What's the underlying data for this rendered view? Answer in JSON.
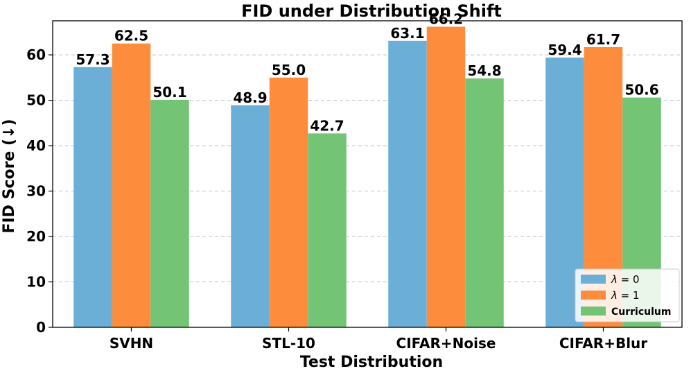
{
  "chart_data": {
    "type": "bar",
    "title": "FID under Distribution Shift",
    "xlabel": "Test Distribution",
    "ylabel": "FID Score (↓)",
    "ylim": [
      0,
      67.5
    ],
    "yticks": [
      0,
      10,
      20,
      30,
      40,
      50,
      60
    ],
    "grid": true,
    "legend_position": "bottom-right",
    "categories": [
      "SVHN",
      "STL-10",
      "CIFAR+Noise",
      "CIFAR+Blur"
    ],
    "series": [
      {
        "name": "λ = 0",
        "legend_var": "λ",
        "legend_rest": " = 0",
        "color": "#6baed6",
        "values": [
          57.3,
          48.9,
          63.1,
          59.4
        ],
        "labels": [
          "57.3",
          "48.9",
          "63.1",
          "59.4"
        ]
      },
      {
        "name": "λ = 1",
        "legend_var": "λ",
        "legend_rest": " = 1",
        "color": "#fd8d3c",
        "values": [
          62.5,
          55.0,
          66.2,
          61.7
        ],
        "labels": [
          "62.5",
          "55.0",
          "66.2",
          "61.7"
        ]
      },
      {
        "name": "Curriculum",
        "legend_var": "",
        "legend_rest": "Curriculum",
        "color": "#74c476",
        "values": [
          50.1,
          42.7,
          54.8,
          50.6
        ],
        "labels": [
          "50.1",
          "42.7",
          "54.8",
          "50.6"
        ]
      }
    ]
  }
}
